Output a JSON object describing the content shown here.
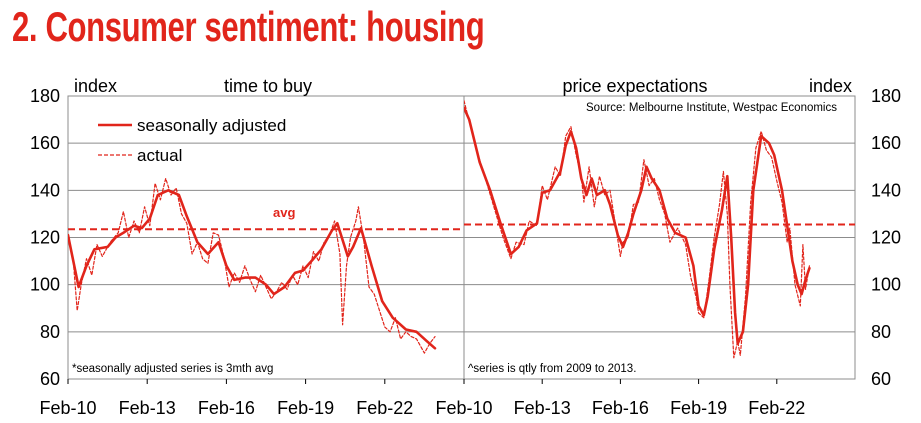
{
  "title": "2. Consumer sentiment: housing",
  "colors": {
    "accent": "#e1251b",
    "grid": "#8c8c8c",
    "text": "#000000"
  },
  "chart_data": [
    {
      "type": "line",
      "title": "time to buy",
      "ylabel": "index",
      "ylim": [
        60,
        180
      ],
      "yticks": [
        "60",
        "80",
        "100",
        "120",
        "140",
        "160",
        "180"
      ],
      "xticks": [
        "Feb-10",
        "Feb-13",
        "Feb-16",
        "Feb-19",
        "Feb-22"
      ],
      "xlim": [
        2010,
        2025
      ],
      "legend": [
        "seasonally adjusted",
        "actual"
      ],
      "note": "*seasonally adjusted series is 3mth avg",
      "avg_label": "avg",
      "avg_value": 123.5,
      "series": [
        {
          "name": "seasonally adjusted",
          "style": "solid",
          "points": [
            [
              2010.0,
              121
            ],
            [
              2010.4,
              99
            ],
            [
              2010.7,
              108
            ],
            [
              2011.0,
              115
            ],
            [
              2011.5,
              116
            ],
            [
              2011.8,
              120
            ],
            [
              2012.1,
              122
            ],
            [
              2012.5,
              125
            ],
            [
              2012.8,
              124
            ],
            [
              2013.1,
              128
            ],
            [
              2013.4,
              138
            ],
            [
              2013.8,
              140
            ],
            [
              2014.2,
              138
            ],
            [
              2014.5,
              129
            ],
            [
              2014.9,
              118
            ],
            [
              2015.3,
              113
            ],
            [
              2015.7,
              118
            ],
            [
              2016.0,
              108
            ],
            [
              2016.3,
              102
            ],
            [
              2016.7,
              103
            ],
            [
              2017.1,
              103
            ],
            [
              2017.5,
              100
            ],
            [
              2017.8,
              96
            ],
            [
              2018.2,
              99
            ],
            [
              2018.6,
              105
            ],
            [
              2018.9,
              106
            ],
            [
              2019.3,
              111
            ],
            [
              2019.6,
              115
            ],
            [
              2020.0,
              123
            ],
            [
              2020.2,
              126
            ],
            [
              2020.6,
              112
            ],
            [
              2020.8,
              116
            ],
            [
              2021.1,
              124
            ],
            [
              2021.5,
              108
            ],
            [
              2021.9,
              93
            ],
            [
              2022.3,
              86
            ],
            [
              2022.8,
              81
            ],
            [
              2023.2,
              80
            ],
            [
              2023.6,
              76
            ],
            [
              2023.9,
              73
            ]
          ]
        },
        {
          "name": "actual",
          "style": "dashed",
          "points": [
            [
              2010.0,
              120
            ],
            [
              2010.2,
              110
            ],
            [
              2010.35,
              89
            ],
            [
              2010.5,
              100
            ],
            [
              2010.7,
              111
            ],
            [
              2010.9,
              104
            ],
            [
              2011.1,
              117
            ],
            [
              2011.3,
              112
            ],
            [
              2011.6,
              118
            ],
            [
              2011.9,
              122
            ],
            [
              2012.1,
              131
            ],
            [
              2012.3,
              120
            ],
            [
              2012.5,
              127
            ],
            [
              2012.7,
              122
            ],
            [
              2012.9,
              133
            ],
            [
              2013.1,
              125
            ],
            [
              2013.3,
              143
            ],
            [
              2013.5,
              136
            ],
            [
              2013.7,
              145
            ],
            [
              2013.9,
              138
            ],
            [
              2014.1,
              141
            ],
            [
              2014.3,
              130
            ],
            [
              2014.5,
              126
            ],
            [
              2014.7,
              113
            ],
            [
              2014.9,
              118
            ],
            [
              2015.1,
              111
            ],
            [
              2015.3,
              109
            ],
            [
              2015.5,
              122
            ],
            [
              2015.7,
              121
            ],
            [
              2015.9,
              112
            ],
            [
              2016.1,
              99
            ],
            [
              2016.3,
              105
            ],
            [
              2016.5,
              101
            ],
            [
              2016.7,
              108
            ],
            [
              2016.9,
              102
            ],
            [
              2017.1,
              97
            ],
            [
              2017.3,
              104
            ],
            [
              2017.5,
              99
            ],
            [
              2017.7,
              94
            ],
            [
              2017.9,
              97
            ],
            [
              2018.1,
              101
            ],
            [
              2018.3,
              98
            ],
            [
              2018.5,
              104
            ],
            [
              2018.7,
              100
            ],
            [
              2018.9,
              108
            ],
            [
              2019.1,
              103
            ],
            [
              2019.3,
              114
            ],
            [
              2019.5,
              110
            ],
            [
              2019.7,
              118
            ],
            [
              2019.9,
              121
            ],
            [
              2020.1,
              127
            ],
            [
              2020.3,
              113
            ],
            [
              2020.4,
              83
            ],
            [
              2020.55,
              108
            ],
            [
              2020.7,
              120
            ],
            [
              2020.9,
              127
            ],
            [
              2021.0,
              133
            ],
            [
              2021.2,
              119
            ],
            [
              2021.4,
              99
            ],
            [
              2021.6,
              96
            ],
            [
              2021.8,
              89
            ],
            [
              2022.0,
              82
            ],
            [
              2022.2,
              80
            ],
            [
              2022.4,
              86
            ],
            [
              2022.6,
              77
            ],
            [
              2022.8,
              80
            ],
            [
              2023.0,
              78
            ],
            [
              2023.2,
              77
            ],
            [
              2023.5,
              71
            ],
            [
              2023.7,
              75
            ],
            [
              2023.9,
              78
            ]
          ]
        }
      ]
    },
    {
      "type": "line",
      "title": "price expectations",
      "ylabel": "index",
      "ylim": [
        60,
        180
      ],
      "yticks": [
        "60",
        "80",
        "100",
        "120",
        "140",
        "160",
        "180"
      ],
      "xticks": [
        "Feb-10",
        "Feb-13",
        "Feb-16",
        "Feb-19",
        "Feb-22"
      ],
      "xlim": [
        2010,
        2025
      ],
      "source": "Source: Melbourne Institute, Westpac Economics",
      "note": "^series is qtly from 2009 to 2013.",
      "avg_value": 125.5,
      "series": [
        {
          "name": "seasonally adjusted",
          "style": "solid",
          "points": [
            [
              2010.0,
              175
            ],
            [
              2010.2,
              170
            ],
            [
              2010.6,
              152
            ],
            [
              2011.0,
              140
            ],
            [
              2011.4,
              126
            ],
            [
              2011.8,
              113
            ],
            [
              2012.1,
              116
            ],
            [
              2012.4,
              123
            ],
            [
              2012.8,
              126
            ],
            [
              2013.0,
              139
            ],
            [
              2013.3,
              140
            ],
            [
              2013.7,
              148
            ],
            [
              2013.9,
              159
            ],
            [
              2014.1,
              165
            ],
            [
              2014.3,
              158
            ],
            [
              2014.5,
              145
            ],
            [
              2014.7,
              138
            ],
            [
              2014.9,
              145
            ],
            [
              2015.1,
              138
            ],
            [
              2015.4,
              140
            ],
            [
              2015.6,
              134
            ],
            [
              2015.9,
              121
            ],
            [
              2016.1,
              116
            ],
            [
              2016.3,
              122
            ],
            [
              2016.5,
              130
            ],
            [
              2016.8,
              140
            ],
            [
              2017.0,
              150
            ],
            [
              2017.2,
              145
            ],
            [
              2017.5,
              140
            ],
            [
              2017.8,
              128
            ],
            [
              2018.1,
              122
            ],
            [
              2018.5,
              120
            ],
            [
              2018.8,
              108
            ],
            [
              2019.0,
              91
            ],
            [
              2019.2,
              87
            ],
            [
              2019.35,
              95
            ],
            [
              2019.6,
              115
            ],
            [
              2019.9,
              132
            ],
            [
              2020.1,
              146
            ],
            [
              2020.25,
              120
            ],
            [
              2020.4,
              88
            ],
            [
              2020.5,
              75
            ],
            [
              2020.7,
              80
            ],
            [
              2020.9,
              100
            ],
            [
              2021.1,
              140
            ],
            [
              2021.4,
              163
            ],
            [
              2021.7,
              160
            ],
            [
              2021.9,
              155
            ],
            [
              2022.2,
              140
            ],
            [
              2022.4,
              125
            ],
            [
              2022.6,
              110
            ],
            [
              2022.8,
              100
            ],
            [
              2022.95,
              96
            ],
            [
              2023.1,
              102
            ],
            [
              2023.25,
              107
            ]
          ]
        },
        {
          "name": "actual",
          "style": "dashed",
          "points": [
            [
              2010.0,
              178
            ],
            [
              2010.3,
              165
            ],
            [
              2010.6,
              153
            ],
            [
              2010.9,
              142
            ],
            [
              2011.2,
              131
            ],
            [
              2011.5,
              120
            ],
            [
              2011.8,
              111
            ],
            [
              2012.0,
              118
            ],
            [
              2012.3,
              117
            ],
            [
              2012.5,
              127
            ],
            [
              2012.8,
              125
            ],
            [
              2013.0,
              142
            ],
            [
              2013.2,
              136
            ],
            [
              2013.5,
              150
            ],
            [
              2013.7,
              146
            ],
            [
              2013.9,
              163
            ],
            [
              2014.1,
              167
            ],
            [
              2014.3,
              155
            ],
            [
              2014.5,
              146
            ],
            [
              2014.6,
              135
            ],
            [
              2014.8,
              150
            ],
            [
              2015.0,
              133
            ],
            [
              2015.2,
              146
            ],
            [
              2015.4,
              138
            ],
            [
              2015.6,
              140
            ],
            [
              2015.8,
              126
            ],
            [
              2016.0,
              112
            ],
            [
              2016.1,
              118
            ],
            [
              2016.3,
              120
            ],
            [
              2016.5,
              134
            ],
            [
              2016.7,
              135
            ],
            [
              2016.9,
              153
            ],
            [
              2017.1,
              142
            ],
            [
              2017.3,
              145
            ],
            [
              2017.5,
              136
            ],
            [
              2017.7,
              130
            ],
            [
              2017.9,
              118
            ],
            [
              2018.2,
              124
            ],
            [
              2018.5,
              117
            ],
            [
              2018.7,
              103
            ],
            [
              2018.9,
              95
            ],
            [
              2019.0,
              88
            ],
            [
              2019.2,
              86
            ],
            [
              2019.4,
              102
            ],
            [
              2019.6,
              120
            ],
            [
              2019.8,
              134
            ],
            [
              2019.95,
              148
            ],
            [
              2020.1,
              130
            ],
            [
              2020.2,
              100
            ],
            [
              2020.35,
              69
            ],
            [
              2020.5,
              76
            ],
            [
              2020.6,
              70
            ],
            [
              2020.8,
              95
            ],
            [
              2021.0,
              135
            ],
            [
              2021.2,
              158
            ],
            [
              2021.4,
              165
            ],
            [
              2021.6,
              157
            ],
            [
              2021.8,
              154
            ],
            [
              2022.0,
              144
            ],
            [
              2022.2,
              135
            ],
            [
              2022.4,
              118
            ],
            [
              2022.5,
              124
            ],
            [
              2022.7,
              100
            ],
            [
              2022.9,
              91
            ],
            [
              2023.0,
              117
            ],
            [
              2023.1,
              98
            ],
            [
              2023.25,
              108
            ]
          ]
        }
      ]
    }
  ]
}
